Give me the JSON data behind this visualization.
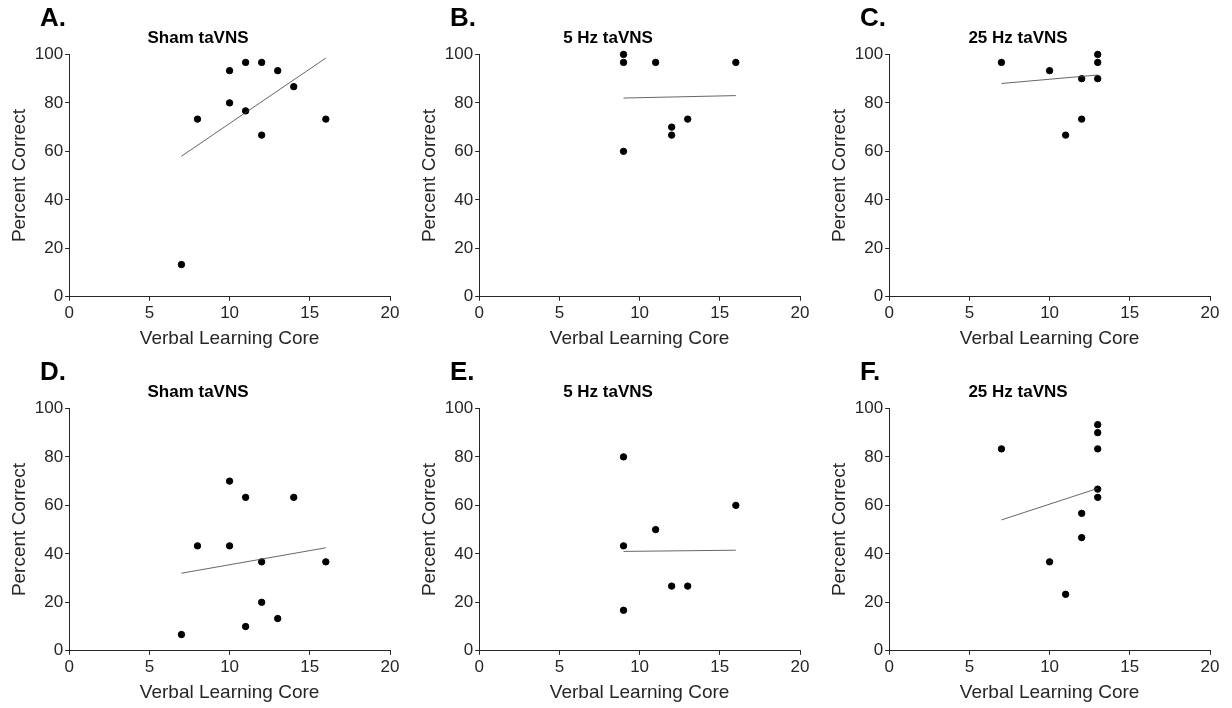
{
  "chart_data": [
    {
      "type": "scatter",
      "title": "Sham taVNS",
      "annotations": [
        "A."
      ],
      "xlabel": "Verbal Learning Core",
      "ylabel": "Percent Correct",
      "xlim": [
        0,
        20
      ],
      "xticks": [
        0,
        5,
        10,
        15,
        20
      ],
      "ylim": [
        0,
        100
      ],
      "yticks": [
        0,
        20,
        40,
        60,
        80,
        100
      ],
      "grid": false,
      "legend": false,
      "series": [
        {
          "color": "#000000",
          "marker": "circle",
          "x": [
            7,
            8,
            10,
            10,
            11,
            11,
            12,
            12,
            13,
            14,
            16
          ],
          "values": [
            13.3,
            73.3,
            93.3,
            80,
            96.7,
            76.7,
            96.7,
            66.7,
            93.3,
            86.7,
            73.3
          ]
        },
        {
          "type": "line",
          "marker": "none",
          "color": "#404040",
          "x": [
            7,
            16
          ],
          "values": [
            58,
            98.5
          ]
        }
      ]
    },
    {
      "type": "scatter",
      "title": "5 Hz taVNS",
      "annotations": [
        "B."
      ],
      "xlabel": "Verbal Learning Core",
      "ylabel": "Percent Correct",
      "xlim": [
        0,
        20
      ],
      "xticks": [
        0,
        5,
        10,
        15,
        20
      ],
      "ylim": [
        0,
        100
      ],
      "yticks": [
        0,
        20,
        40,
        60,
        80,
        100
      ],
      "grid": false,
      "legend": false,
      "series": [
        {
          "color": "#000000",
          "marker": "circle",
          "x": [
            9,
            9,
            9,
            11,
            12,
            12,
            13,
            16
          ],
          "values": [
            100,
            96.7,
            60,
            96.7,
            70,
            66.7,
            73.3,
            96.7
          ]
        },
        {
          "type": "line",
          "marker": "none",
          "color": "#404040",
          "x": [
            9,
            16
          ],
          "values": [
            82,
            83
          ]
        }
      ]
    },
    {
      "type": "scatter",
      "title": "25 Hz taVNS",
      "annotations": [
        "C."
      ],
      "xlabel": "Verbal Learning Core",
      "ylabel": "Percent Correct",
      "xlim": [
        0,
        20
      ],
      "xticks": [
        0,
        5,
        10,
        15,
        20
      ],
      "ylim": [
        0,
        100
      ],
      "yticks": [
        0,
        20,
        40,
        60,
        80,
        100
      ],
      "grid": false,
      "legend": false,
      "series": [
        {
          "color": "#000000",
          "marker": "circle",
          "x": [
            7,
            10,
            11,
            12,
            12,
            13,
            13,
            13
          ],
          "values": [
            96.7,
            93.3,
            66.7,
            90,
            73.3,
            100,
            96.7,
            90
          ]
        },
        {
          "type": "line",
          "marker": "none",
          "color": "#404040",
          "x": [
            7,
            13
          ],
          "values": [
            88,
            91.5
          ]
        }
      ]
    },
    {
      "type": "scatter",
      "title": "Sham taVNS",
      "annotations": [
        "D."
      ],
      "xlabel": "Verbal Learning Core",
      "ylabel": "Percent Correct",
      "xlim": [
        0,
        20
      ],
      "xticks": [
        0,
        5,
        10,
        15,
        20
      ],
      "ylim": [
        0,
        100
      ],
      "yticks": [
        0,
        20,
        40,
        60,
        80,
        100
      ],
      "grid": false,
      "legend": false,
      "series": [
        {
          "color": "#000000",
          "marker": "circle",
          "x": [
            7,
            8,
            10,
            10,
            11,
            11,
            12,
            12,
            13,
            14,
            16
          ],
          "values": [
            6.7,
            43.3,
            70,
            43.3,
            63.3,
            10,
            36.7,
            20,
            13.3,
            63.3,
            36.7
          ]
        },
        {
          "type": "line",
          "marker": "none",
          "color": "#404040",
          "x": [
            7,
            16
          ],
          "values": [
            32,
            42.5
          ]
        }
      ]
    },
    {
      "type": "scatter",
      "title": "5 Hz taVNS",
      "annotations": [
        "E."
      ],
      "xlabel": "Verbal Learning Core",
      "ylabel": "Percent Correct",
      "xlim": [
        0,
        20
      ],
      "xticks": [
        0,
        5,
        10,
        15,
        20
      ],
      "ylim": [
        0,
        100
      ],
      "yticks": [
        0,
        20,
        40,
        60,
        80,
        100
      ],
      "grid": false,
      "legend": false,
      "series": [
        {
          "color": "#000000",
          "marker": "circle",
          "x": [
            9,
            9,
            9,
            11,
            12,
            13,
            16
          ],
          "values": [
            80,
            43.3,
            16.7,
            50,
            26.7,
            26.7,
            60
          ]
        },
        {
          "type": "line",
          "marker": "none",
          "color": "#404040",
          "x": [
            9,
            16
          ],
          "values": [
            41,
            41.5
          ]
        }
      ]
    },
    {
      "type": "scatter",
      "title": "25 Hz taVNS",
      "annotations": [
        "F."
      ],
      "xlabel": "Verbal Learning Core",
      "ylabel": "Percent Correct",
      "xlim": [
        0,
        20
      ],
      "xticks": [
        0,
        5,
        10,
        15,
        20
      ],
      "ylim": [
        0,
        100
      ],
      "yticks": [
        0,
        20,
        40,
        60,
        80,
        100
      ],
      "grid": false,
      "legend": false,
      "series": [
        {
          "color": "#000000",
          "marker": "circle",
          "x": [
            7,
            10,
            11,
            12,
            12,
            13,
            13,
            13,
            13,
            13
          ],
          "values": [
            83.3,
            36.7,
            23.3,
            56.7,
            46.7,
            93.3,
            90,
            83.3,
            66.7,
            63.3
          ]
        },
        {
          "type": "line",
          "marker": "none",
          "color": "#404040",
          "x": [
            7,
            13
          ],
          "values": [
            54,
            67
          ]
        }
      ]
    }
  ]
}
